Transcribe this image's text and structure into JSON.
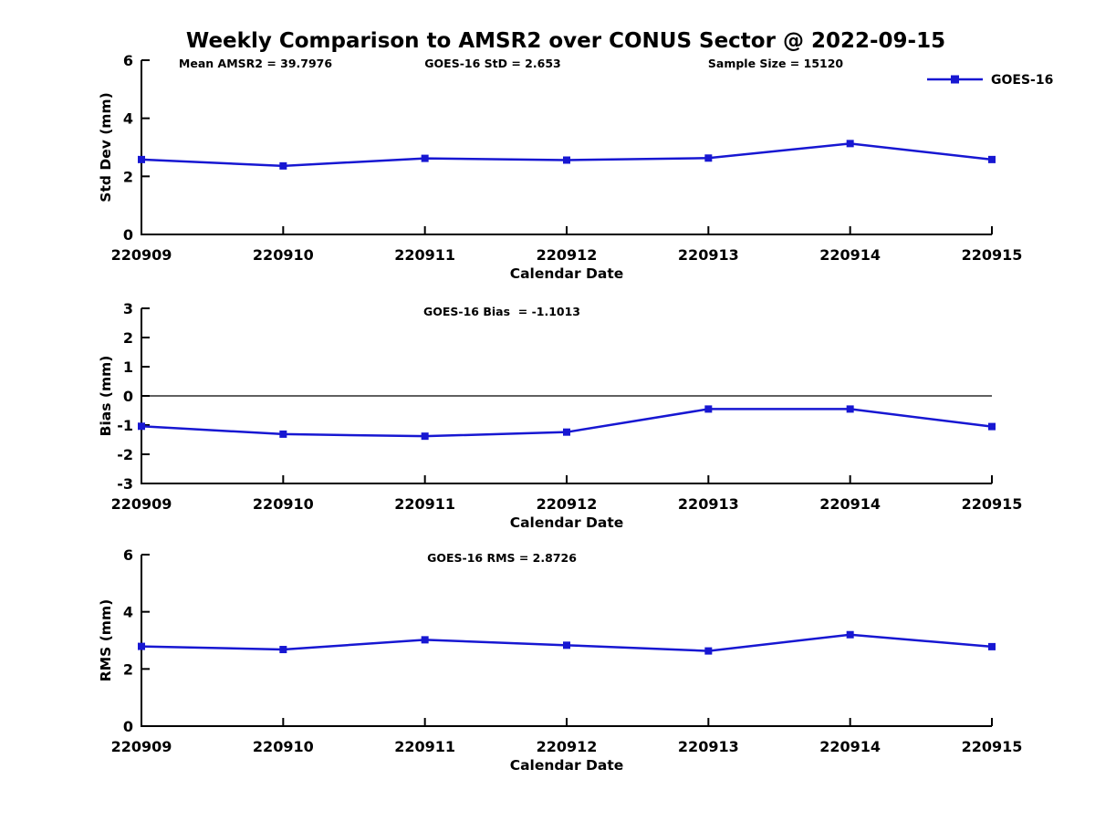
{
  "title": "Weekly Comparison to AMSR2 over CONUS Sector @ 2022-09-15",
  "colors": {
    "line": "#1717d2",
    "axis": "#000000",
    "zero_line": "#000000",
    "background": "#ffffff"
  },
  "legend": {
    "label": "GOES-16"
  },
  "chart_data": [
    {
      "type": "line",
      "name": "std-dev",
      "annotations": [
        "Mean AMSR2 = 39.7976",
        "GOES-16 StD = 2.653",
        "Sample Size = 15120"
      ],
      "categories": [
        "220909",
        "220910",
        "220911",
        "220912",
        "220913",
        "220914",
        "220915"
      ],
      "series": [
        {
          "name": "GOES-16",
          "values": [
            2.58,
            2.36,
            2.62,
            2.56,
            2.63,
            3.13,
            2.58
          ]
        }
      ],
      "xlabel": "Calendar Date",
      "ylabel": "Std Dev (mm)",
      "ylim": [
        0,
        6
      ],
      "yticks": [
        0,
        2,
        4,
        6
      ],
      "grid": false,
      "show_legend": true,
      "legend_position": "top-right",
      "zero_line": false
    },
    {
      "type": "line",
      "name": "bias",
      "annotations": [
        "GOES-16 Bias  = -1.1013"
      ],
      "categories": [
        "220909",
        "220910",
        "220911",
        "220912",
        "220913",
        "220914",
        "220915"
      ],
      "series": [
        {
          "name": "GOES-16",
          "values": [
            -1.04,
            -1.31,
            -1.38,
            -1.24,
            -0.45,
            -0.45,
            -1.05
          ]
        }
      ],
      "xlabel": "Calendar Date",
      "ylabel": "Bias (mm)",
      "ylim": [
        -3,
        3
      ],
      "yticks": [
        -3,
        -2,
        -1,
        0,
        1,
        2,
        3
      ],
      "grid": false,
      "show_legend": false,
      "zero_line": true
    },
    {
      "type": "line",
      "name": "rms",
      "annotations": [
        "GOES-16 RMS = 2.8726"
      ],
      "categories": [
        "220909",
        "220910",
        "220911",
        "220912",
        "220913",
        "220914",
        "220915"
      ],
      "series": [
        {
          "name": "GOES-16",
          "values": [
            2.79,
            2.68,
            3.02,
            2.83,
            2.63,
            3.2,
            2.78
          ]
        }
      ],
      "xlabel": "Calendar Date",
      "ylabel": "RMS (mm)",
      "ylim": [
        0,
        6
      ],
      "yticks": [
        0,
        2,
        4,
        6
      ],
      "grid": false,
      "show_legend": false,
      "zero_line": false
    }
  ]
}
